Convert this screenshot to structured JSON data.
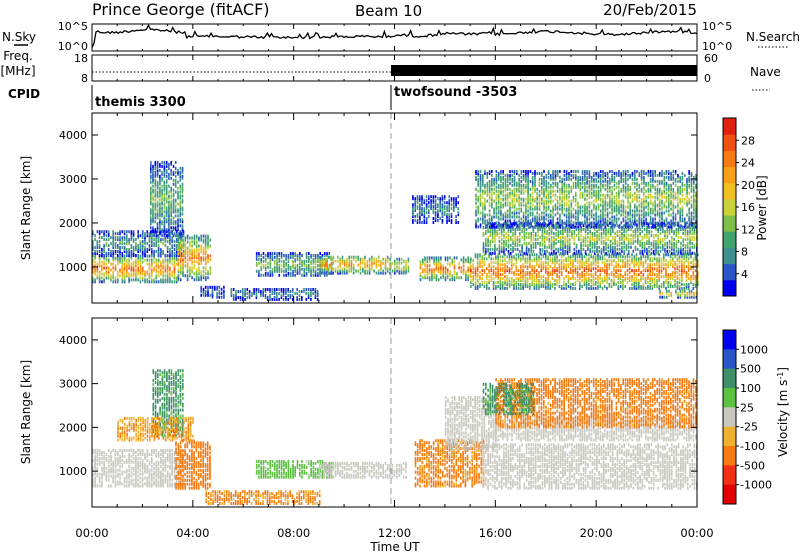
{
  "header": {
    "station": "Prince George (fitACF)",
    "beam": "Beam 10",
    "date": "20/Feb/2015"
  },
  "left_labels": {
    "nsky": "N.Sky",
    "freq_line1": "Freq.",
    "freq_line2": "[MHz]",
    "cpid": "CPID"
  },
  "right_labels": {
    "nsearch": "N.Search",
    "nave": "Nave"
  },
  "strip_ticks": {
    "nsky_left": [
      "10^5",
      "10^0"
    ],
    "nsky_right": [
      "10^5",
      "10^0"
    ],
    "freq_left": [
      "18",
      "8"
    ],
    "nave_right": [
      "60",
      "0"
    ]
  },
  "cpid": {
    "segments": [
      {
        "label": "themis 3300",
        "start_hour": 0
      },
      {
        "label": "twofsound -3503",
        "start_hour": 12
      }
    ]
  },
  "chart_data": [
    {
      "type": "heatmap",
      "name": "power",
      "ylabel": "Slant Range [km]",
      "xlabel": "",
      "xlim": [
        0,
        24
      ],
      "ylim": [
        180,
        4500
      ],
      "yticks": [
        "1000",
        "2000",
        "3000",
        "4000"
      ],
      "yticks_values": [
        1000,
        2000,
        3000,
        4000
      ],
      "colorbar": {
        "label": "Power [dB]",
        "range": [
          0,
          32
        ],
        "ticks": [
          "4",
          "8",
          "12",
          "16",
          "20",
          "24",
          "28"
        ],
        "tick_values": [
          4,
          8,
          12,
          16,
          20,
          24,
          28
        ],
        "colors": [
          "#0000ee",
          "#2a55c8",
          "#3f8f8f",
          "#3fa46b",
          "#7cc04a",
          "#c8d23a",
          "#f0c020",
          "#f8a018",
          "#f57a12",
          "#f05010",
          "#e02010"
        ]
      },
      "regions": [
        {
          "t0": 0.0,
          "t1": 3.4,
          "r0": 650,
          "r1": 1250,
          "peak": 26
        },
        {
          "t0": 0.0,
          "t1": 3.6,
          "r0": 1250,
          "r1": 1800,
          "peak": 10
        },
        {
          "t0": 2.3,
          "t1": 3.6,
          "r0": 1700,
          "r1": 3400,
          "peak": 12
        },
        {
          "t0": 3.4,
          "t1": 4.7,
          "r0": 700,
          "r1": 1700,
          "peak": 25
        },
        {
          "t0": 4.3,
          "t1": 5.2,
          "r0": 300,
          "r1": 550,
          "peak": 6
        },
        {
          "t0": 5.5,
          "t1": 9.0,
          "r0": 250,
          "r1": 500,
          "peak": 8
        },
        {
          "t0": 6.5,
          "t1": 9.5,
          "r0": 800,
          "r1": 1300,
          "peak": 14
        },
        {
          "t0": 9.0,
          "t1": 11.8,
          "r0": 850,
          "r1": 1250,
          "peak": 24
        },
        {
          "t0": 11.8,
          "t1": 12.6,
          "r0": 850,
          "r1": 1200,
          "peak": 20
        },
        {
          "t0": 13.0,
          "t1": 15.0,
          "r0": 700,
          "r1": 1200,
          "peak": 26
        },
        {
          "t0": 12.7,
          "t1": 14.5,
          "r0": 2000,
          "r1": 2600,
          "peak": 8
        },
        {
          "t0": 15.0,
          "t1": 24.0,
          "r0": 500,
          "r1": 1300,
          "peak": 27
        },
        {
          "t0": 15.5,
          "t1": 24.0,
          "r0": 1300,
          "r1": 2000,
          "peak": 16
        },
        {
          "t0": 15.2,
          "t1": 24.0,
          "r0": 1900,
          "r1": 3200,
          "peak": 15
        },
        {
          "t0": 22.5,
          "t1": 24.0,
          "r0": 300,
          "r1": 450,
          "peak": 22
        }
      ]
    },
    {
      "type": "heatmap",
      "name": "velocity",
      "ylabel": "Slant Range [km]",
      "xlabel": "Time UT",
      "xlim": [
        0,
        24
      ],
      "ylim": [
        180,
        4500
      ],
      "yticks": [
        "1000",
        "2000",
        "3000",
        "4000"
      ],
      "yticks_values": [
        1000,
        2000,
        3000,
        4000
      ],
      "xticks": [
        "00:00",
        "04:00",
        "08:00",
        "12:00",
        "16:00",
        "20:00",
        "00:00"
      ],
      "xticks_values": [
        0,
        4,
        8,
        12,
        16,
        20,
        24
      ],
      "colorbar": {
        "label": "Velocity [m s^-1]",
        "ticks": [
          "1000",
          "500",
          "100",
          "25",
          "-25",
          "-100",
          "-500",
          "-1000"
        ],
        "colors": [
          "#0000ee",
          "#2a55c8",
          "#3f8f6b",
          "#5cc040",
          "#c8c8c0",
          "#f0b030",
          "#f57a12",
          "#f03010",
          "#e00000"
        ]
      },
      "regions": [
        {
          "t0": 0.0,
          "t1": 3.6,
          "r0": 650,
          "r1": 1500,
          "v": 0
        },
        {
          "t0": 2.4,
          "t1": 3.6,
          "r0": 1800,
          "r1": 3300,
          "v": 150
        },
        {
          "t0": 3.3,
          "t1": 4.7,
          "r0": 600,
          "r1": 1700,
          "v": -300
        },
        {
          "t0": 1.0,
          "t1": 4.0,
          "r0": 1700,
          "r1": 2200,
          "v": -80
        },
        {
          "t0": 4.5,
          "t1": 9.0,
          "r0": 250,
          "r1": 550,
          "v": -120
        },
        {
          "t0": 6.5,
          "t1": 9.5,
          "r0": 850,
          "r1": 1250,
          "v": 60
        },
        {
          "t0": 9.0,
          "t1": 12.5,
          "r0": 850,
          "r1": 1200,
          "v": 0
        },
        {
          "t0": 12.8,
          "t1": 15.5,
          "r0": 650,
          "r1": 1700,
          "v": -150
        },
        {
          "t0": 14.0,
          "t1": 16.0,
          "r0": 1500,
          "r1": 2700,
          "v": 0
        },
        {
          "t0": 15.5,
          "t1": 24.0,
          "r0": 600,
          "r1": 1600,
          "v": 0
        },
        {
          "t0": 16.0,
          "t1": 24.0,
          "r0": 1700,
          "r1": 2200,
          "v": 0
        },
        {
          "t0": 16.0,
          "t1": 24.0,
          "r0": 2000,
          "r1": 3100,
          "v": -200
        },
        {
          "t0": 15.5,
          "t1": 17.5,
          "r0": 2300,
          "r1": 3000,
          "v": 150
        }
      ]
    }
  ]
}
